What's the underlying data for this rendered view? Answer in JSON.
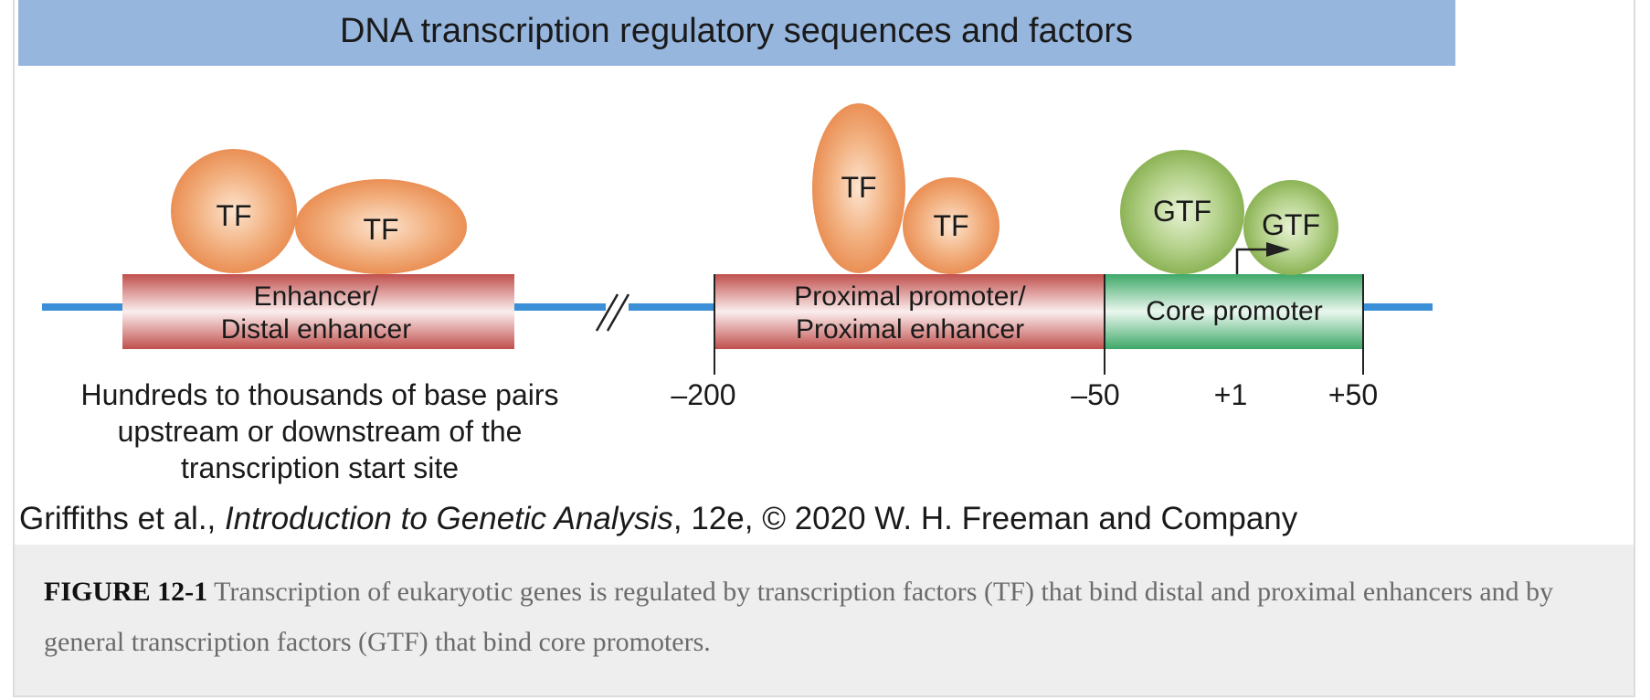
{
  "banner": {
    "title": "DNA transcription regulatory sequences and factors",
    "color": "#96b6de"
  },
  "colors": {
    "dna_line": "#3b8fd6",
    "enhancer_box": "#c0504d",
    "core_box": "#3ea868",
    "tf_protein": "#e88d52",
    "gtf_protein": "#8ab34d"
  },
  "regions": {
    "enhancer": {
      "line1": "Enhancer/",
      "line2": "Distal enhancer"
    },
    "proximal": {
      "line1": "Proximal promoter/",
      "line2": "Proximal enhancer"
    },
    "core": {
      "label": "Core promoter"
    }
  },
  "factors": {
    "tf": "TF",
    "gtf": "GTF"
  },
  "positions": {
    "minus200": "–200",
    "minus50": "–50",
    "plus1": "+1",
    "plus50": "+50"
  },
  "distance_note": {
    "line1": "Hundreds to thousands of base pairs",
    "line2": "upstream or downstream of the",
    "line3": "transcription start site"
  },
  "credit": {
    "prefix": "Griffiths et al., ",
    "book": "Introduction to Genetic Analysis",
    "suffix": ", 12e, © 2020 W. H. Freeman and Company"
  },
  "caption": {
    "label": "FIGURE 12-1",
    "text": " Transcription of eukaryotic genes is regulated by transcription factors (TF) that bind distal and proximal enhancers and by general transcription factors (GTF) that bind core promoters."
  }
}
